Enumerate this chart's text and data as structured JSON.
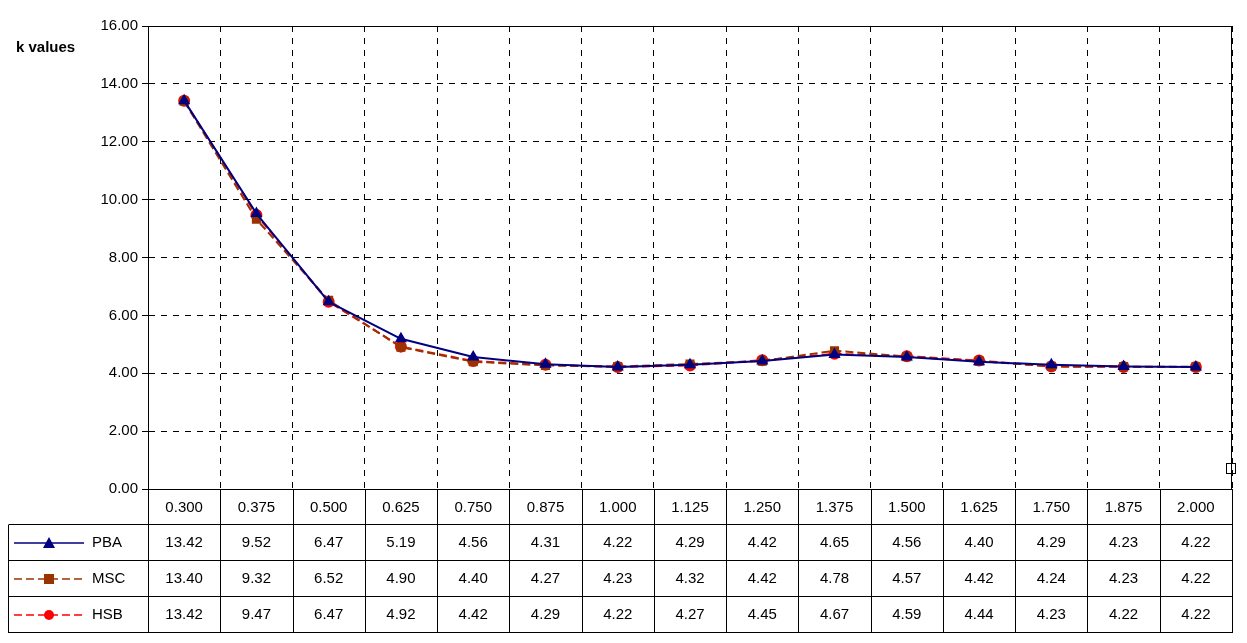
{
  "chart_data": {
    "type": "line",
    "ylabel": "k values",
    "categories": [
      "0.300",
      "0.375",
      "0.500",
      "0.625",
      "0.750",
      "0.875",
      "1.000",
      "1.125",
      "1.250",
      "1.375",
      "1.500",
      "1.625",
      "1.750",
      "1.875",
      "2.000"
    ],
    "ylim": [
      0,
      16
    ],
    "yticks": [
      {
        "value": 0,
        "label": "0.00"
      },
      {
        "value": 2,
        "label": "2.00"
      },
      {
        "value": 4,
        "label": "4.00"
      },
      {
        "value": 6,
        "label": "6.00"
      },
      {
        "value": 8,
        "label": "8.00"
      },
      {
        "value": 10,
        "label": "10.00"
      },
      {
        "value": 12,
        "label": "12.00"
      },
      {
        "value": 14,
        "label": "14.00"
      },
      {
        "value": 16,
        "label": "16.00"
      }
    ],
    "grid": true,
    "legend": "bottom left",
    "series": [
      {
        "name": "PBA",
        "color": "#000080",
        "marker": "triangle",
        "line_style": "solid",
        "values": [
          13.42,
          9.52,
          6.47,
          5.19,
          4.56,
          4.31,
          4.22,
          4.29,
          4.42,
          4.65,
          4.56,
          4.4,
          4.29,
          4.23,
          4.22
        ],
        "value_labels": [
          "13.42",
          "9.52",
          "6.47",
          "5.19",
          "4.56",
          "4.31",
          "4.22",
          "4.29",
          "4.42",
          "4.65",
          "4.56",
          "4.40",
          "4.29",
          "4.23",
          "4.22"
        ]
      },
      {
        "name": "MSC",
        "color": "#993300",
        "marker": "square",
        "line_style": "dashed",
        "values": [
          13.4,
          9.32,
          6.52,
          4.9,
          4.4,
          4.27,
          4.23,
          4.32,
          4.42,
          4.78,
          4.57,
          4.42,
          4.24,
          4.23,
          4.22
        ],
        "value_labels": [
          "13.40",
          "9.32",
          "6.52",
          "4.90",
          "4.40",
          "4.27",
          "4.23",
          "4.32",
          "4.42",
          "4.78",
          "4.57",
          "4.42",
          "4.24",
          "4.23",
          "4.22"
        ]
      },
      {
        "name": "HSB",
        "color": "#ff0000",
        "marker": "circle",
        "line_style": "dashed",
        "values": [
          13.42,
          9.47,
          6.47,
          4.92,
          4.42,
          4.29,
          4.22,
          4.27,
          4.45,
          4.67,
          4.59,
          4.44,
          4.23,
          4.22,
          4.22
        ],
        "value_labels": [
          "13.42",
          "9.47",
          "6.47",
          "4.92",
          "4.42",
          "4.29",
          "4.22",
          "4.27",
          "4.45",
          "4.67",
          "4.59",
          "4.44",
          "4.23",
          "4.22",
          "4.22"
        ]
      }
    ]
  }
}
